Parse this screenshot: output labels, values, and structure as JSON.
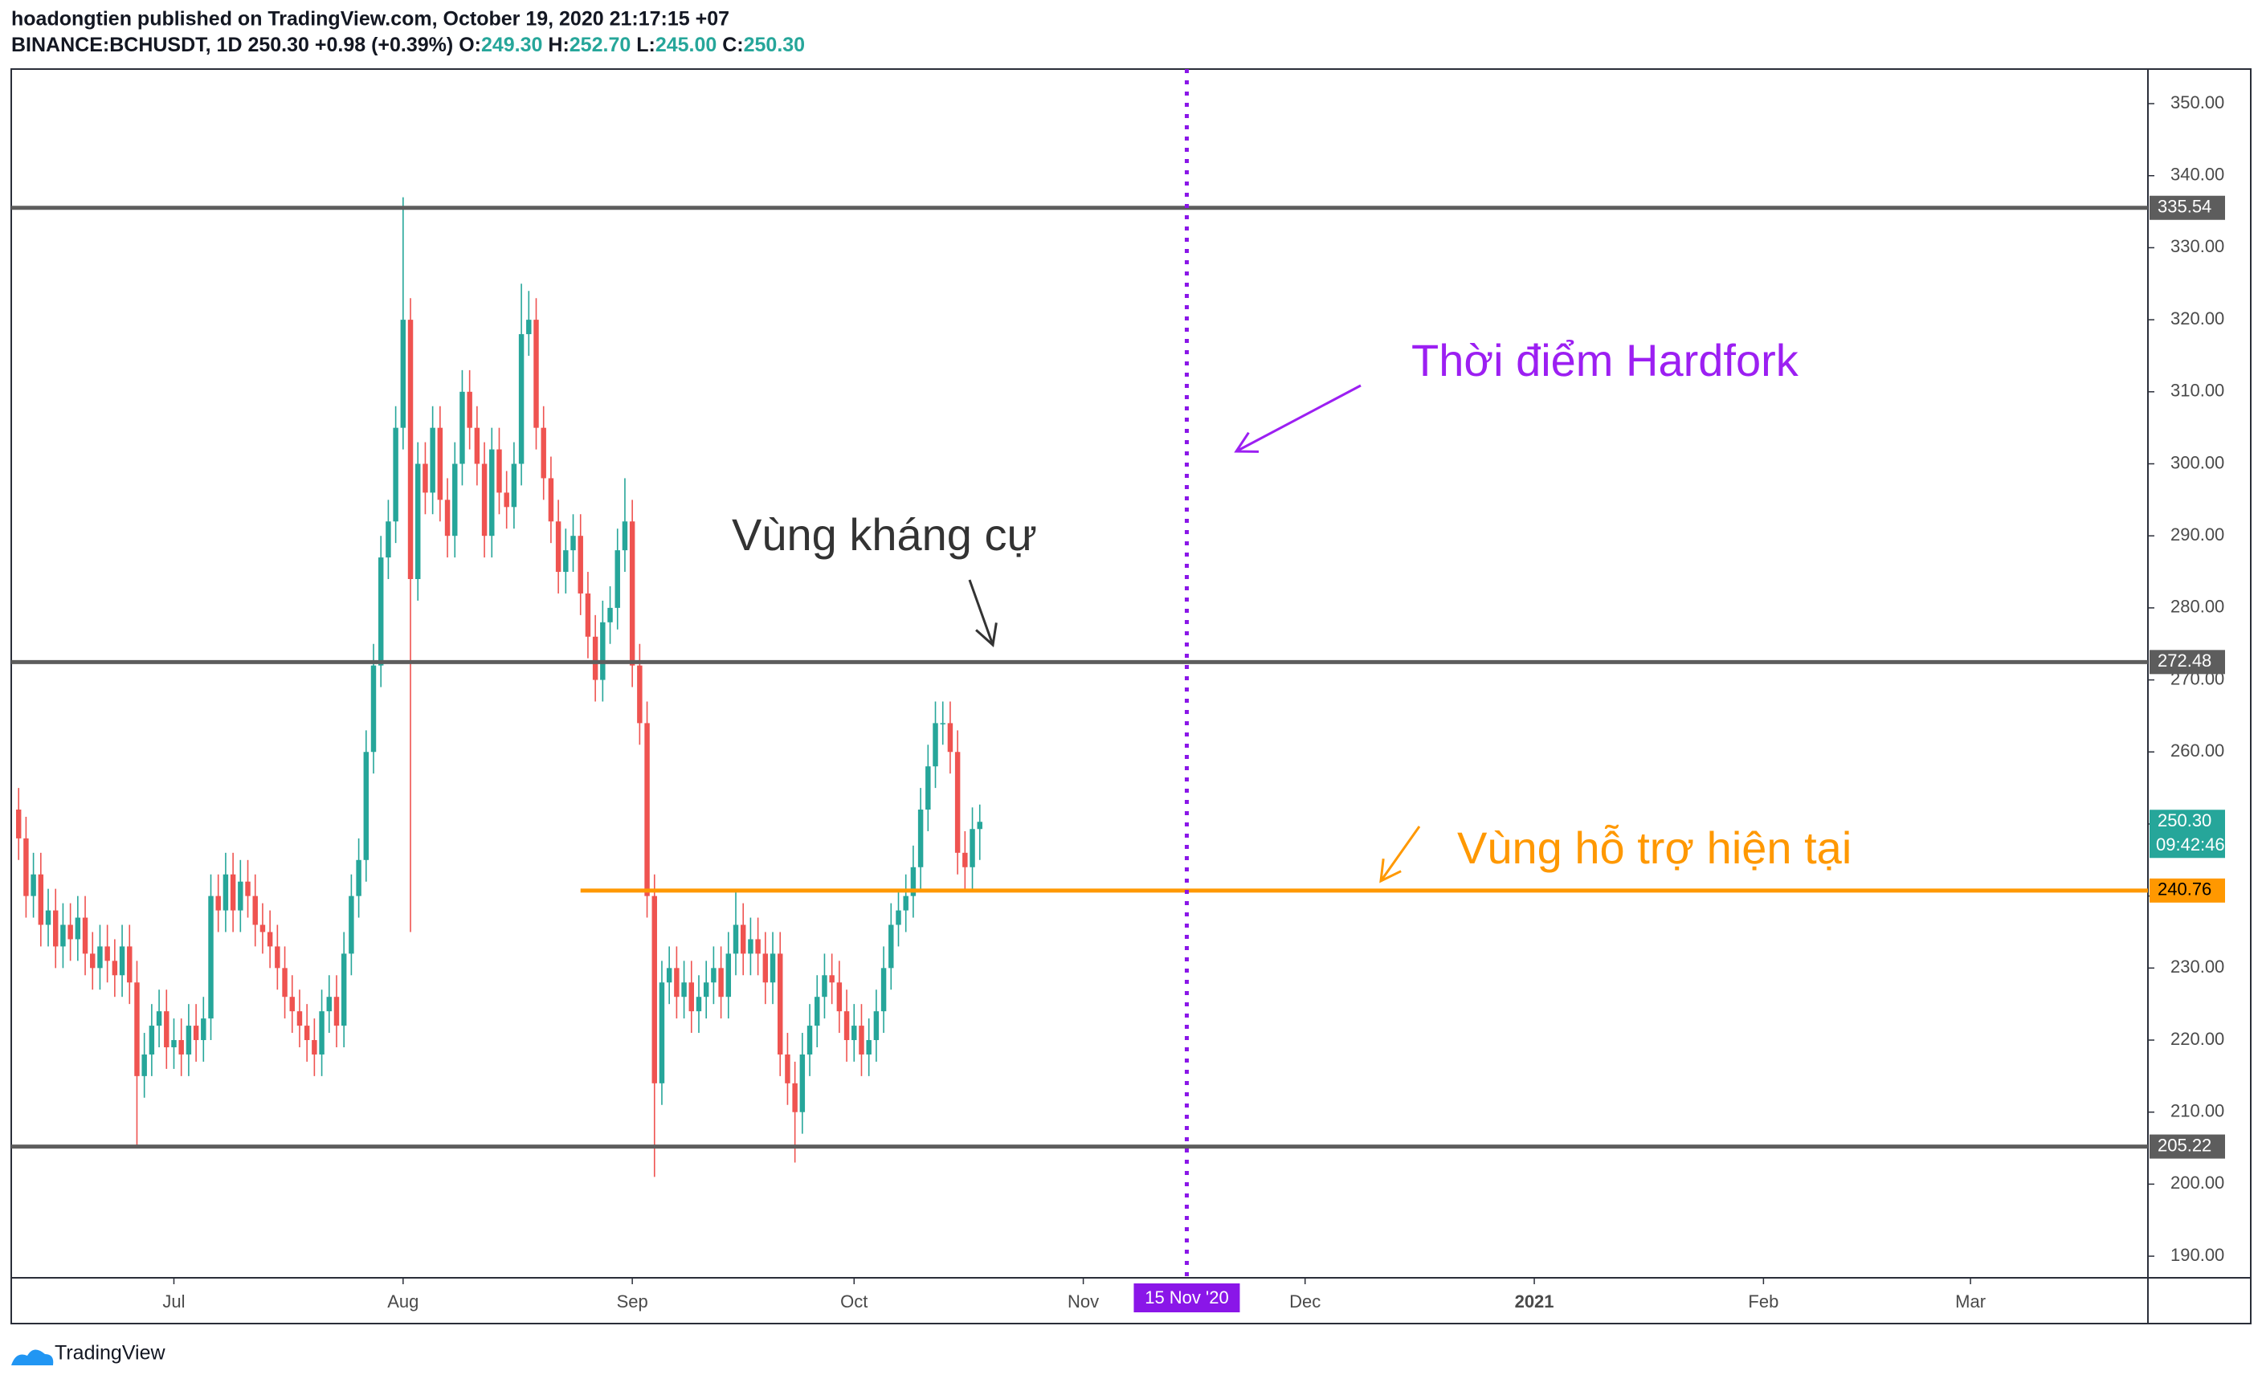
{
  "header": {
    "line1": "hoadongtien published on TradingView.com, October 19, 2020 21:17:15 +07",
    "symbol": "BINANCE:BCHUSDT, 1D",
    "last": "250.30",
    "change": "+0.98 (+0.39%)",
    "ohlc": [
      {
        "label": "O:",
        "value": "249.30"
      },
      {
        "label": "H:",
        "value": "252.70"
      },
      {
        "label": "L:",
        "value": "245.00"
      },
      {
        "label": "C:",
        "value": "250.30"
      }
    ]
  },
  "footer": {
    "brand": "TradingView"
  },
  "chart_data": {
    "type": "candlestick",
    "up_color": "#26a69a",
    "down_color": "#ef5350",
    "x": [
      "2020-06-10",
      "2020-06-11",
      "2020-06-12",
      "2020-06-13",
      "2020-06-14",
      "2020-06-15",
      "2020-06-16",
      "2020-06-17",
      "2020-06-18",
      "2020-06-19",
      "2020-06-20",
      "2020-06-21",
      "2020-06-22",
      "2020-06-23",
      "2020-06-24",
      "2020-06-25",
      "2020-06-26",
      "2020-06-27",
      "2020-06-28",
      "2020-06-29",
      "2020-06-30",
      "2020-07-01",
      "2020-07-02",
      "2020-07-03",
      "2020-07-04",
      "2020-07-05",
      "2020-07-06",
      "2020-07-07",
      "2020-07-08",
      "2020-07-09",
      "2020-07-10",
      "2020-07-11",
      "2020-07-12",
      "2020-07-13",
      "2020-07-14",
      "2020-07-15",
      "2020-07-16",
      "2020-07-17",
      "2020-07-18",
      "2020-07-19",
      "2020-07-20",
      "2020-07-21",
      "2020-07-22",
      "2020-07-23",
      "2020-07-24",
      "2020-07-25",
      "2020-07-26",
      "2020-07-27",
      "2020-07-28",
      "2020-07-29",
      "2020-07-30",
      "2020-07-31",
      "2020-08-01",
      "2020-08-02",
      "2020-08-03",
      "2020-08-04",
      "2020-08-05",
      "2020-08-06",
      "2020-08-07",
      "2020-08-08",
      "2020-08-09",
      "2020-08-10",
      "2020-08-11",
      "2020-08-12",
      "2020-08-13",
      "2020-08-14",
      "2020-08-15",
      "2020-08-16",
      "2020-08-17",
      "2020-08-18",
      "2020-08-19",
      "2020-08-20",
      "2020-08-21",
      "2020-08-22",
      "2020-08-23",
      "2020-08-24",
      "2020-08-25",
      "2020-08-26",
      "2020-08-27",
      "2020-08-28",
      "2020-08-29",
      "2020-08-30",
      "2020-08-31",
      "2020-09-01",
      "2020-09-02",
      "2020-09-03",
      "2020-09-04",
      "2020-09-05",
      "2020-09-06",
      "2020-09-07",
      "2020-09-08",
      "2020-09-09",
      "2020-09-10",
      "2020-09-11",
      "2020-09-12",
      "2020-09-13",
      "2020-09-14",
      "2020-09-15",
      "2020-09-16",
      "2020-09-17",
      "2020-09-18",
      "2020-09-19",
      "2020-09-20",
      "2020-09-21",
      "2020-09-22",
      "2020-09-23",
      "2020-09-24",
      "2020-09-25",
      "2020-09-26",
      "2020-09-27",
      "2020-09-28",
      "2020-09-29",
      "2020-09-30",
      "2020-10-01",
      "2020-10-02",
      "2020-10-03",
      "2020-10-04",
      "2020-10-05",
      "2020-10-06",
      "2020-10-07",
      "2020-10-08",
      "2020-10-09",
      "2020-10-10",
      "2020-10-11",
      "2020-10-12",
      "2020-10-13",
      "2020-10-14",
      "2020-10-15",
      "2020-10-16",
      "2020-10-17",
      "2020-10-18"
    ],
    "open": [
      252,
      248,
      240,
      243,
      236,
      238,
      233,
      236,
      234,
      237,
      232,
      230,
      233,
      231,
      229,
      233,
      228,
      215,
      218,
      222,
      224,
      219,
      220,
      218,
      222,
      220,
      223,
      240,
      238,
      243,
      238,
      242,
      240,
      236,
      235,
      233,
      230,
      226,
      224,
      222,
      220,
      218,
      224,
      226,
      222,
      232,
      240,
      245,
      260,
      272,
      287,
      292,
      305,
      320,
      284,
      300,
      296,
      305,
      295,
      290,
      300,
      310,
      305,
      300,
      290,
      302,
      296,
      294,
      300,
      318,
      320,
      305,
      298,
      292,
      285,
      288,
      290,
      282,
      276,
      270,
      278,
      280,
      288,
      292,
      272,
      264,
      240,
      214,
      228,
      230,
      226,
      228,
      224,
      226,
      228,
      230,
      226,
      232,
      236,
      232,
      234,
      232,
      228,
      232,
      218,
      214,
      210,
      218,
      222,
      226,
      229,
      228,
      224,
      220,
      222,
      218,
      220,
      224,
      230,
      236,
      238,
      240,
      244,
      252,
      258,
      264,
      264,
      260,
      246,
      244,
      249.3
    ],
    "high": [
      255,
      251,
      246,
      246,
      241,
      241,
      239,
      239,
      240,
      240,
      235,
      236,
      236,
      234,
      236,
      236,
      231,
      221,
      225,
      227,
      227,
      223,
      223,
      225,
      225,
      226,
      243,
      243,
      246,
      246,
      245,
      245,
      243,
      239,
      238,
      236,
      233,
      229,
      227,
      225,
      223,
      227,
      229,
      229,
      235,
      243,
      248,
      263,
      275,
      290,
      295,
      308,
      337,
      323,
      303,
      303,
      308,
      308,
      298,
      303,
      313,
      313,
      308,
      303,
      305,
      305,
      299,
      303,
      325,
      324,
      323,
      308,
      301,
      295,
      291,
      293,
      293,
      285,
      279,
      281,
      283,
      291,
      298,
      295,
      275,
      267,
      243,
      231,
      233,
      233,
      231,
      231,
      229,
      231,
      233,
      233,
      235,
      241,
      239,
      237,
      237,
      235,
      235,
      235,
      221,
      217,
      221,
      225,
      229,
      232,
      232,
      231,
      227,
      225,
      225,
      223,
      227,
      233,
      239,
      241,
      243,
      247,
      255,
      261,
      267,
      267,
      267,
      263,
      249,
      252.3,
      252.7
    ],
    "low": [
      245,
      237,
      237,
      233,
      233,
      230,
      230,
      231,
      231,
      229,
      227,
      227,
      228,
      226,
      226,
      225,
      205,
      212,
      215,
      219,
      216,
      216,
      215,
      215,
      217,
      217,
      220,
      235,
      235,
      235,
      235,
      237,
      233,
      232,
      230,
      227,
      223,
      221,
      219,
      217,
      215,
      215,
      221,
      219,
      219,
      229,
      237,
      242,
      257,
      269,
      284,
      289,
      302,
      235,
      281,
      293,
      293,
      292,
      287,
      287,
      297,
      302,
      297,
      287,
      287,
      293,
      291,
      291,
      297,
      315,
      302,
      295,
      289,
      282,
      282,
      285,
      279,
      273,
      267,
      267,
      275,
      277,
      285,
      269,
      261,
      237,
      201,
      211,
      225,
      223,
      223,
      221,
      221,
      223,
      225,
      223,
      223,
      229,
      229,
      229,
      229,
      225,
      225,
      215,
      211,
      203,
      207,
      215,
      219,
      223,
      225,
      221,
      217,
      217,
      215,
      215,
      217,
      221,
      227,
      233,
      235,
      237,
      241,
      249,
      255,
      261,
      257,
      243,
      241,
      241,
      245
    ],
    "close": [
      248,
      240,
      243,
      236,
      238,
      233,
      236,
      234,
      237,
      232,
      230,
      233,
      231,
      229,
      233,
      228,
      215,
      218,
      222,
      224,
      219,
      220,
      218,
      222,
      220,
      223,
      240,
      238,
      243,
      238,
      242,
      240,
      236,
      235,
      233,
      230,
      226,
      224,
      222,
      220,
      218,
      224,
      226,
      222,
      232,
      240,
      245,
      260,
      272,
      287,
      292,
      305,
      320,
      284,
      300,
      296,
      305,
      295,
      290,
      300,
      310,
      305,
      300,
      290,
      302,
      296,
      294,
      300,
      318,
      320,
      305,
      298,
      292,
      285,
      288,
      290,
      282,
      276,
      270,
      278,
      280,
      288,
      292,
      272,
      264,
      240,
      214,
      228,
      230,
      226,
      228,
      224,
      226,
      228,
      230,
      226,
      232,
      236,
      232,
      234,
      232,
      228,
      232,
      218,
      214,
      210,
      218,
      222,
      226,
      229,
      228,
      224,
      220,
      222,
      218,
      220,
      224,
      230,
      236,
      238,
      240,
      244,
      252,
      258,
      264,
      264,
      260,
      246,
      244,
      249.3,
      250.3
    ],
    "xlim": [
      "2020-06-09",
      "2021-03-25"
    ],
    "xticks": [
      {
        "value": "2020-07-01",
        "label": "Jul"
      },
      {
        "value": "2020-08-01",
        "label": "Aug"
      },
      {
        "value": "2020-09-01",
        "label": "Sep"
      },
      {
        "value": "2020-10-01",
        "label": "Oct"
      },
      {
        "value": "2020-11-01",
        "label": "Nov"
      },
      {
        "value": "2020-12-01",
        "label": "Dec"
      },
      {
        "value": "2021-01-01",
        "label": "2021"
      },
      {
        "value": "2021-02-01",
        "label": "Feb"
      },
      {
        "value": "2021-03-01",
        "label": "Mar"
      }
    ],
    "ylim": [
      187,
      354.8
    ],
    "yticks": [
      {
        "value": 190,
        "label": "190.00"
      },
      {
        "value": 200,
        "label": "200.00"
      },
      {
        "value": 210,
        "label": "210.00"
      },
      {
        "value": 220,
        "label": "220.00"
      },
      {
        "value": 230,
        "label": "230.00"
      },
      {
        "value": 240,
        "label": "240.00"
      },
      {
        "value": 250,
        "label": "250.00"
      },
      {
        "value": 260,
        "label": "260.00"
      },
      {
        "value": 270,
        "label": "270.00"
      },
      {
        "value": 280,
        "label": "280.00"
      },
      {
        "value": 290,
        "label": "290.00"
      },
      {
        "value": 300,
        "label": "300.00"
      },
      {
        "value": 310,
        "label": "310.00"
      },
      {
        "value": 320,
        "label": "320.00"
      },
      {
        "value": 330,
        "label": "330.00"
      },
      {
        "value": 340,
        "label": "340.00"
      },
      {
        "value": 350,
        "label": "350.00"
      }
    ],
    "levels": [
      {
        "value": 335.54,
        "label": "335.54",
        "color": "#5d5d5d"
      },
      {
        "value": 272.48,
        "label": "272.48",
        "color": "#5d5d5d"
      },
      {
        "value": 205.22,
        "label": "205.22",
        "color": "#5d5d5d"
      },
      {
        "value": 240.76,
        "label": "240.76",
        "color": "#ff9800",
        "start": "2020-08-25"
      }
    ],
    "vline": {
      "x": "2020-11-15",
      "label": "15 Nov '20",
      "color": "#8a16e8"
    },
    "last_price": {
      "value": 250.3,
      "label": "250.30",
      "countdown": "09:42:46"
    },
    "annotations": [
      {
        "text": "Thời điểm Hardfork",
        "color": "#9c1ff2"
      },
      {
        "text": "Vùng kháng cự",
        "color": "#333333"
      },
      {
        "text": "Vùng hỗ trợ hiện tại",
        "color": "#ff9800"
      }
    ]
  }
}
